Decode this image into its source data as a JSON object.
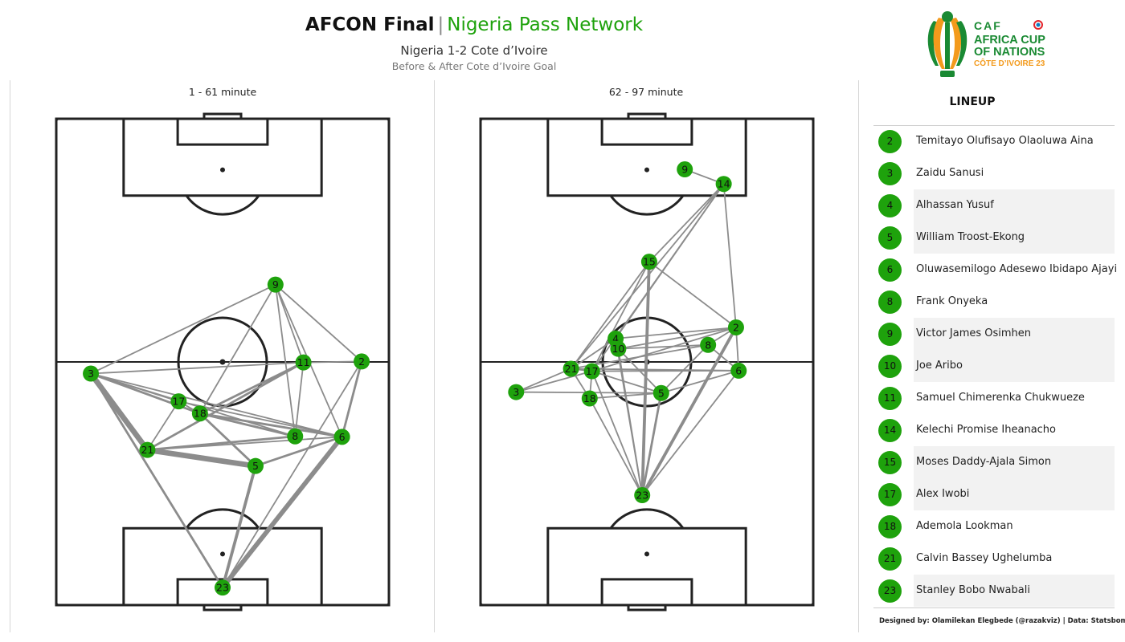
{
  "header": {
    "title_main": "AFCON Final",
    "title_sep": "|",
    "title_accent": "Nigeria Pass Network",
    "subtitle": "Nigeria 1-2 Cote d’Ivoire",
    "subsubtitle": "Before & After Cote d’Ivoire Goal"
  },
  "logo": {
    "caf": "CAF",
    "line1": "AFRICA CUP",
    "line2": "OF NATIONS",
    "line3": "CÔTE D’IVOIRE 23",
    "sponsor": "TotalEnergies"
  },
  "colors": {
    "accent": "#1ea20c",
    "line": "#8c8c8c",
    "pitch": "#222222",
    "shade": "#f2f2f2"
  },
  "chart_data": [
    {
      "type": "network",
      "title": "1 - 61 minute",
      "nodes": [
        {
          "id": "9",
          "x": 65.9,
          "y": 65.9
        },
        {
          "id": "11",
          "x": 74.3,
          "y": 49.9
        },
        {
          "id": "2",
          "x": 91.8,
          "y": 50.1
        },
        {
          "id": "3",
          "x": 10.4,
          "y": 47.6
        },
        {
          "id": "17",
          "x": 36.8,
          "y": 41.9
        },
        {
          "id": "18",
          "x": 43.2,
          "y": 39.4
        },
        {
          "id": "8",
          "x": 71.8,
          "y": 34.7
        },
        {
          "id": "6",
          "x": 85.9,
          "y": 34.6
        },
        {
          "id": "21",
          "x": 27.4,
          "y": 31.9
        },
        {
          "id": "5",
          "x": 59.9,
          "y": 28.6
        },
        {
          "id": "23",
          "x": 50.0,
          "y": 3.6
        }
      ],
      "edges": [
        {
          "from": "3",
          "to": "21",
          "passes": 6
        },
        {
          "from": "3",
          "to": "23",
          "passes": 2
        },
        {
          "from": "3",
          "to": "9",
          "passes": 1
        },
        {
          "from": "3",
          "to": "11",
          "passes": 1
        },
        {
          "from": "3",
          "to": "17",
          "passes": 1
        },
        {
          "from": "3",
          "to": "18",
          "passes": 2
        },
        {
          "from": "3",
          "to": "6",
          "passes": 1
        },
        {
          "from": "3",
          "to": "8",
          "passes": 1
        },
        {
          "from": "21",
          "to": "5",
          "passes": 6
        },
        {
          "from": "21",
          "to": "8",
          "passes": 2
        },
        {
          "from": "21",
          "to": "11",
          "passes": 2
        },
        {
          "from": "21",
          "to": "17",
          "passes": 1
        },
        {
          "from": "21",
          "to": "6",
          "passes": 1
        },
        {
          "from": "5",
          "to": "23",
          "passes": 3
        },
        {
          "from": "5",
          "to": "6",
          "passes": 2
        },
        {
          "from": "5",
          "to": "18",
          "passes": 2
        },
        {
          "from": "23",
          "to": "6",
          "passes": 5
        },
        {
          "from": "6",
          "to": "2",
          "passes": 2
        },
        {
          "from": "6",
          "to": "9",
          "passes": 1
        },
        {
          "from": "6",
          "to": "18",
          "passes": 2
        },
        {
          "from": "6",
          "to": "17",
          "passes": 1
        },
        {
          "from": "8",
          "to": "18",
          "passes": 2
        },
        {
          "from": "8",
          "to": "11",
          "passes": 1
        },
        {
          "from": "8",
          "to": "9",
          "passes": 1
        },
        {
          "from": "18",
          "to": "11",
          "passes": 2
        },
        {
          "from": "18",
          "to": "9",
          "passes": 1
        },
        {
          "from": "17",
          "to": "18",
          "passes": 1
        },
        {
          "from": "11",
          "to": "2",
          "passes": 1
        },
        {
          "from": "9",
          "to": "11",
          "passes": 1
        },
        {
          "from": "9",
          "to": "2",
          "passes": 1
        },
        {
          "from": "2",
          "to": "23",
          "passes": 1
        }
      ]
    },
    {
      "type": "network",
      "title": "62 - 97 minute",
      "nodes": [
        {
          "id": "9",
          "x": 61.4,
          "y": 89.6
        },
        {
          "id": "14",
          "x": 73.1,
          "y": 86.6
        },
        {
          "id": "15",
          "x": 50.7,
          "y": 70.6
        },
        {
          "id": "2",
          "x": 76.8,
          "y": 57.1
        },
        {
          "id": "4",
          "x": 40.6,
          "y": 54.8
        },
        {
          "id": "8",
          "x": 68.4,
          "y": 53.5
        },
        {
          "id": "10",
          "x": 41.4,
          "y": 52.7
        },
        {
          "id": "21",
          "x": 27.2,
          "y": 48.6
        },
        {
          "id": "17",
          "x": 33.5,
          "y": 48.1
        },
        {
          "id": "6",
          "x": 77.6,
          "y": 48.2
        },
        {
          "id": "5",
          "x": 54.3,
          "y": 43.6
        },
        {
          "id": "3",
          "x": 10.7,
          "y": 43.8
        },
        {
          "id": "18",
          "x": 32.8,
          "y": 42.5
        },
        {
          "id": "23",
          "x": 48.6,
          "y": 22.6
        }
      ],
      "edges": [
        {
          "from": "9",
          "to": "14",
          "passes": 1
        },
        {
          "from": "14",
          "to": "2",
          "passes": 1
        },
        {
          "from": "14",
          "to": "15",
          "passes": 1
        },
        {
          "from": "14",
          "to": "4",
          "passes": 1
        },
        {
          "from": "14",
          "to": "21",
          "passes": 1
        },
        {
          "from": "14",
          "to": "17",
          "passes": 1
        },
        {
          "from": "15",
          "to": "23",
          "passes": 3
        },
        {
          "from": "15",
          "to": "2",
          "passes": 1
        },
        {
          "from": "15",
          "to": "21",
          "passes": 1
        },
        {
          "from": "15",
          "to": "17",
          "passes": 1
        },
        {
          "from": "2",
          "to": "23",
          "passes": 3
        },
        {
          "from": "2",
          "to": "8",
          "passes": 1
        },
        {
          "from": "2",
          "to": "6",
          "passes": 1
        },
        {
          "from": "2",
          "to": "4",
          "passes": 1
        },
        {
          "from": "2",
          "to": "10",
          "passes": 1
        },
        {
          "from": "2",
          "to": "17",
          "passes": 1
        },
        {
          "from": "8",
          "to": "21",
          "passes": 1
        },
        {
          "from": "8",
          "to": "10",
          "passes": 1
        },
        {
          "from": "8",
          "to": "5",
          "passes": 1
        },
        {
          "from": "8",
          "to": "6",
          "passes": 1
        },
        {
          "from": "4",
          "to": "10",
          "passes": 1
        },
        {
          "from": "4",
          "to": "21",
          "passes": 1
        },
        {
          "from": "4",
          "to": "23",
          "passes": 1
        },
        {
          "from": "10",
          "to": "23",
          "passes": 1
        },
        {
          "from": "10",
          "to": "5",
          "passes": 1
        },
        {
          "from": "21",
          "to": "3",
          "passes": 1
        },
        {
          "from": "21",
          "to": "18",
          "passes": 1
        },
        {
          "from": "21",
          "to": "17",
          "passes": 1
        },
        {
          "from": "21",
          "to": "6",
          "passes": 1
        },
        {
          "from": "17",
          "to": "3",
          "passes": 1
        },
        {
          "from": "17",
          "to": "5",
          "passes": 1
        },
        {
          "from": "17",
          "to": "6",
          "passes": 1
        },
        {
          "from": "17",
          "to": "18",
          "passes": 1
        },
        {
          "from": "3",
          "to": "5",
          "passes": 1
        },
        {
          "from": "18",
          "to": "5",
          "passes": 1
        },
        {
          "from": "18",
          "to": "23",
          "passes": 1
        },
        {
          "from": "5",
          "to": "23",
          "passes": 2
        },
        {
          "from": "5",
          "to": "6",
          "passes": 1
        },
        {
          "from": "23",
          "to": "6",
          "passes": 1
        },
        {
          "from": "23",
          "to": "17",
          "passes": 1
        }
      ]
    }
  ],
  "lineup": {
    "title": "LINEUP",
    "players": [
      {
        "number": "2",
        "name": "Temitayo Olufisayo Olaoluwa Aina",
        "shaded": false
      },
      {
        "number": "3",
        "name": "Zaidu Sanusi",
        "shaded": false
      },
      {
        "number": "4",
        "name": "Alhassan Yusuf",
        "shaded": true
      },
      {
        "number": "5",
        "name": "William Troost-Ekong",
        "shaded": true
      },
      {
        "number": "6",
        "name": "Oluwasemilogo Adesewo Ibidapo Ajayi",
        "shaded": false
      },
      {
        "number": "8",
        "name": "Frank Onyeka",
        "shaded": false
      },
      {
        "number": "9",
        "name": "Victor James Osimhen",
        "shaded": true
      },
      {
        "number": "10",
        "name": "Joe Aribo",
        "shaded": true
      },
      {
        "number": "11",
        "name": "Samuel Chimerenka Chukwueze",
        "shaded": false
      },
      {
        "number": "14",
        "name": "Kelechi Promise Iheanacho",
        "shaded": false
      },
      {
        "number": "15",
        "name": "Moses Daddy-Ajala Simon",
        "shaded": true
      },
      {
        "number": "17",
        "name": "Alex Iwobi",
        "shaded": true
      },
      {
        "number": "18",
        "name": "Ademola Lookman",
        "shaded": false
      },
      {
        "number": "21",
        "name": "Calvin Bassey Ughelumba",
        "shaded": false
      },
      {
        "number": "23",
        "name": "Stanley Bobo Nwabali",
        "shaded": true
      }
    ]
  },
  "footer": "Designed by: Olamilekan Elegbede (@razakviz) | Data: Statsbomb"
}
